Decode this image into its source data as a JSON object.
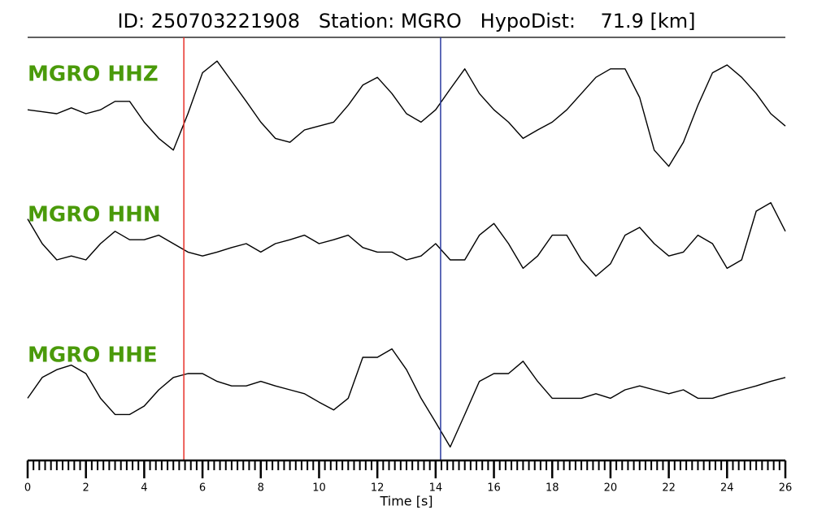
{
  "chart_data": {
    "type": "line",
    "title": "ID: 250703221908   Station: MGRO   HypoDist:    71.9 [km]",
    "xlabel": "Time [s]",
    "xlim": [
      0,
      26
    ],
    "xticks": [
      0,
      2,
      4,
      6,
      8,
      10,
      12,
      14,
      16,
      18,
      20,
      22,
      24,
      26
    ],
    "minor_tick_step": 0.2,
    "ylim": [
      -1,
      1
    ],
    "stacked_panels": true,
    "label_color": "#4a9a0a",
    "markers": [
      {
        "x": 5.36,
        "color": "#e8322a"
      },
      {
        "x": 14.17,
        "color": "#2b3ba0"
      }
    ],
    "x": [
      0,
      0.5,
      1,
      1.5,
      2,
      2.5,
      3,
      3.5,
      4,
      4.5,
      5,
      5.5,
      6,
      6.5,
      7,
      7.5,
      8,
      8.5,
      9,
      9.5,
      10,
      10.5,
      11,
      11.5,
      12,
      12.5,
      13,
      13.5,
      14,
      14.5,
      15,
      15.5,
      16,
      16.5,
      17,
      17.5,
      18,
      18.5,
      19,
      19.5,
      20,
      20.5,
      21,
      21.5,
      22,
      22.5,
      23,
      23.5,
      24,
      24.5,
      25,
      25.5,
      26
    ],
    "series": [
      {
        "name": "MGRO HHZ",
        "color": "#000000",
        "values": [
          0.06,
          0.03,
          0,
          0.09,
          0,
          0.06,
          0.19,
          0.19,
          -0.13,
          -0.38,
          -0.56,
          0,
          0.63,
          0.81,
          0.5,
          0.19,
          -0.13,
          -0.38,
          -0.44,
          -0.25,
          -0.19,
          -0.13,
          0.13,
          0.44,
          0.56,
          0.31,
          0,
          -0.13,
          0.06,
          0.38,
          0.69,
          0.31,
          0.06,
          -0.13,
          -0.38,
          -0.25,
          -0.13,
          0.06,
          0.31,
          0.56,
          0.69,
          0.69,
          0.25,
          -0.56,
          -0.81,
          -0.44,
          0.13,
          0.63,
          0.75,
          0.56,
          0.31,
          0,
          -0.19
        ]
      },
      {
        "name": "MGRO HHN",
        "color": "#000000",
        "values": [
          0.38,
          0,
          -0.25,
          -0.19,
          -0.25,
          0,
          0.19,
          0.06,
          0.06,
          0.13,
          0,
          -0.13,
          -0.19,
          -0.13,
          -0.06,
          0,
          -0.13,
          0,
          0.06,
          0.13,
          0,
          0.06,
          0.13,
          -0.06,
          -0.13,
          -0.13,
          -0.25,
          -0.19,
          0,
          -0.25,
          -0.25,
          0.13,
          0.31,
          0,
          -0.38,
          -0.19,
          0.13,
          0.13,
          -0.25,
          -0.5,
          -0.31,
          0.13,
          0.25,
          0,
          -0.19,
          -0.13,
          0.13,
          0,
          -0.38,
          -0.25,
          0.5,
          0.63,
          0.19
        ]
      },
      {
        "name": "MGRO HHE",
        "color": "#000000",
        "values": [
          -0.13,
          0.19,
          0.31,
          0.38,
          0.25,
          -0.13,
          -0.38,
          -0.38,
          -0.25,
          0,
          0.19,
          0.25,
          0.25,
          0.13,
          0.06,
          0.06,
          0.13,
          0.06,
          0,
          -0.06,
          -0.19,
          -0.31,
          -0.13,
          0.5,
          0.5,
          0.63,
          0.31,
          -0.13,
          -0.5,
          -0.88,
          -0.38,
          0.13,
          0.25,
          0.25,
          0.44,
          0.13,
          -0.13,
          -0.13,
          -0.13,
          -0.06,
          -0.13,
          0,
          0.06,
          0,
          -0.06,
          0,
          -0.13,
          -0.13,
          -0.06,
          0,
          0.06,
          0.13,
          0.19
        ]
      }
    ]
  }
}
